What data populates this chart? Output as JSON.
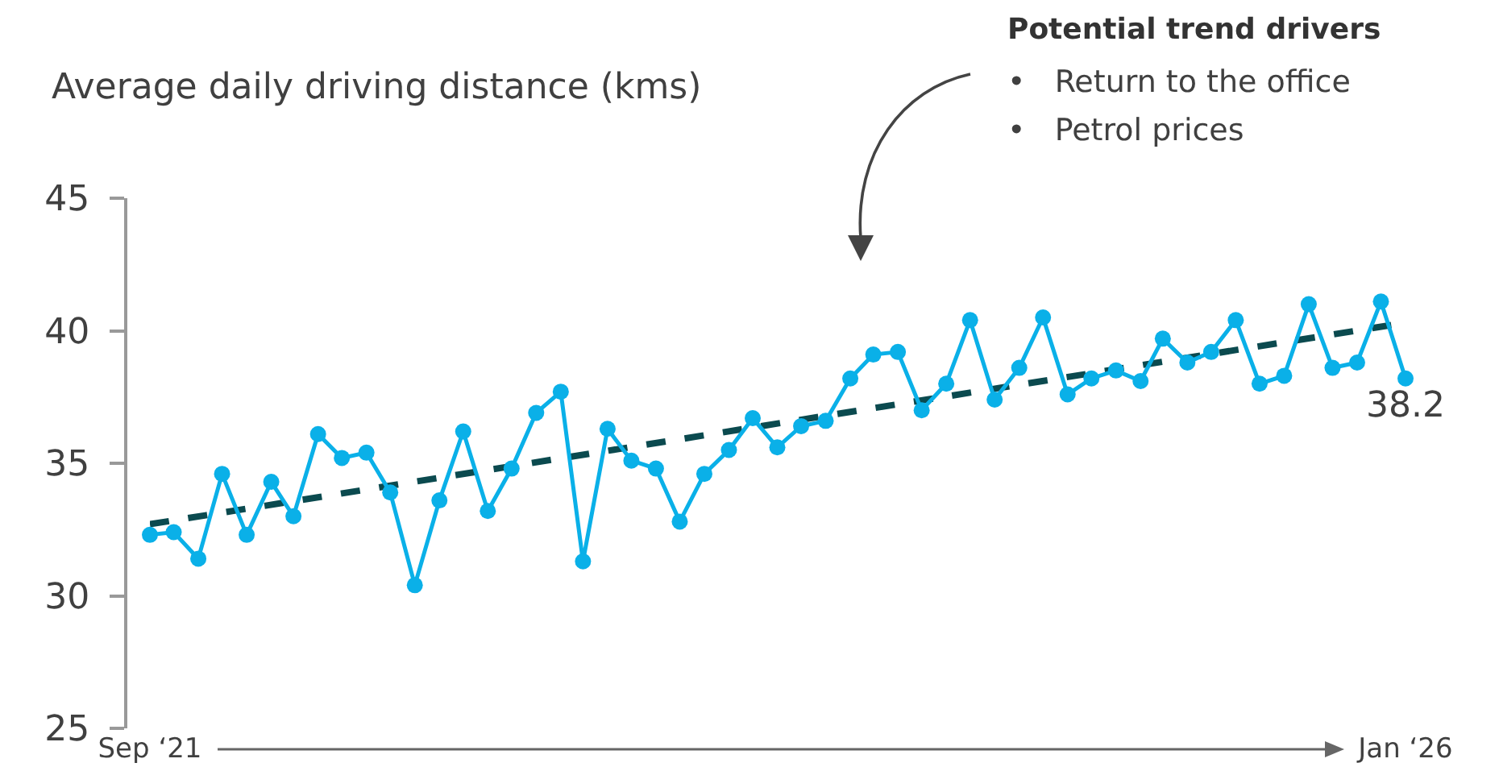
{
  "chart_data": {
    "type": "line",
    "ylabel": "Average daily driving distance (kms)",
    "annotations": [
      "Potential trend drivers",
      "•   Return to the office",
      "•   Petrol prices"
    ],
    "x": [
      "2021-09",
      "2021-10",
      "2021-11",
      "2021-12",
      "2022-01",
      "2022-02",
      "2022-03",
      "2022-04",
      "2022-05",
      "2022-06",
      "2022-07",
      "2022-08",
      "2022-09",
      "2022-10",
      "2022-11",
      "2022-12",
      "2023-01",
      "2023-02",
      "2023-03",
      "2023-04",
      "2023-05",
      "2023-06",
      "2023-07",
      "2023-08",
      "2023-09",
      "2023-10",
      "2023-11",
      "2023-12",
      "2024-01",
      "2024-02",
      "2024-03",
      "2024-04",
      "2024-05",
      "2024-06",
      "2024-07",
      "2024-08",
      "2024-09",
      "2024-10",
      "2024-11",
      "2024-12",
      "2025-01",
      "2025-02",
      "2025-03",
      "2025-04",
      "2025-05",
      "2025-06",
      "2025-07",
      "2025-08",
      "2025-09",
      "2025-10",
      "2025-11",
      "2025-12",
      "2026-01"
    ],
    "series": [
      {
        "color": "#0ab0e8",
        "values": [
          32.3,
          32.4,
          31.4,
          34.6,
          32.3,
          34.3,
          33.0,
          36.1,
          35.2,
          35.4,
          33.9,
          30.4,
          33.6,
          36.2,
          33.2,
          34.8,
          36.9,
          37.7,
          31.3,
          36.3,
          35.1,
          34.8,
          32.8,
          34.6,
          35.5,
          36.7,
          35.6,
          36.4,
          36.6,
          38.2,
          39.1,
          39.2,
          37.0,
          38.0,
          40.4,
          37.4,
          38.6,
          40.5,
          37.6,
          38.2,
          38.5,
          38.1,
          39.7,
          38.8,
          39.2,
          40.4,
          38.0,
          38.3,
          41.0,
          38.6,
          38.8,
          41.1,
          38.2
        ],
        "value_labels": [
          null,
          null,
          null,
          null,
          null,
          null,
          null,
          null,
          null,
          null,
          null,
          null,
          null,
          null,
          null,
          null,
          null,
          null,
          null,
          null,
          null,
          null,
          null,
          null,
          null,
          null,
          null,
          null,
          null,
          null,
          null,
          null,
          null,
          null,
          null,
          null,
          null,
          null,
          null,
          null,
          null,
          null,
          null,
          null,
          null,
          null,
          null,
          null,
          null,
          null,
          null,
          null,
          "38.2"
        ]
      },
      {
        "type": "line",
        "color": "#0b4a4f",
        "x": [
          "2021-09",
          "2026-01"
        ],
        "values": [
          32.7,
          40.3
        ],
        "marker": "none",
        "line_style": "dashed"
      }
    ],
    "xlim": [
      "2021-09",
      "2026-01"
    ],
    "xticks": [
      {
        "value": "2021-09",
        "label": "Sep ‘21"
      },
      {
        "value": "2026-01",
        "label": "Jan ‘26"
      }
    ],
    "ylim": [
      25,
      45
    ],
    "yticks": [
      25,
      30,
      35,
      40,
      45
    ],
    "grid": false,
    "marker": "circle"
  }
}
